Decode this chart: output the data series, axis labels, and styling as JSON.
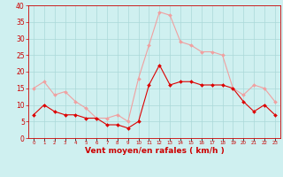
{
  "hours": [
    0,
    1,
    2,
    3,
    4,
    5,
    6,
    7,
    8,
    9,
    10,
    11,
    12,
    13,
    14,
    15,
    16,
    17,
    18,
    19,
    20,
    21,
    22,
    23
  ],
  "vent_moyen": [
    7,
    10,
    8,
    7,
    7,
    6,
    6,
    4,
    4,
    3,
    5,
    16,
    22,
    16,
    17,
    17,
    16,
    16,
    16,
    15,
    11,
    8,
    10,
    7
  ],
  "rafales": [
    15,
    17,
    13,
    14,
    11,
    9,
    6,
    6,
    7,
    5,
    18,
    28,
    38,
    37,
    29,
    28,
    26,
    26,
    25,
    15,
    13,
    16,
    15,
    11
  ],
  "color_moyen": "#dd0000",
  "color_rafales": "#f0a0a0",
  "bg_color": "#cff0f0",
  "grid_color": "#aad8d8",
  "xlabel": "Vent moyen/en rafales ( km/h )",
  "xlabel_color": "#cc0000",
  "tick_color": "#cc0000",
  "axis_color": "#cc0000",
  "ylim": [
    0,
    40
  ],
  "yticks": [
    0,
    5,
    10,
    15,
    20,
    25,
    30,
    35,
    40
  ],
  "xlim": [
    -0.5,
    23.5
  ]
}
